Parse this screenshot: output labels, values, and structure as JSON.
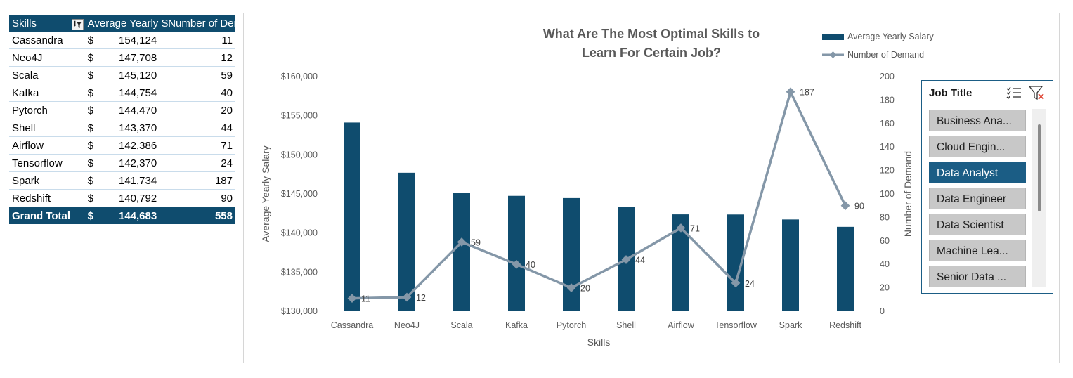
{
  "pivot": {
    "headers": {
      "skills": "Skills",
      "avg": "Average Yearly Salary",
      "demand": "Number of Demand"
    },
    "rows": [
      {
        "skill": "Cassandra",
        "currency": "$",
        "salary": "154,124",
        "demand": "11"
      },
      {
        "skill": "Neo4J",
        "currency": "$",
        "salary": "147,708",
        "demand": "12"
      },
      {
        "skill": "Scala",
        "currency": "$",
        "salary": "145,120",
        "demand": "59"
      },
      {
        "skill": "Kafka",
        "currency": "$",
        "salary": "144,754",
        "demand": "40"
      },
      {
        "skill": "Pytorch",
        "currency": "$",
        "salary": "144,470",
        "demand": "20"
      },
      {
        "skill": "Shell",
        "currency": "$",
        "salary": "143,370",
        "demand": "44"
      },
      {
        "skill": "Airflow",
        "currency": "$",
        "salary": "142,386",
        "demand": "71"
      },
      {
        "skill": "Tensorflow",
        "currency": "$",
        "salary": "142,370",
        "demand": "24"
      },
      {
        "skill": "Spark",
        "currency": "$",
        "salary": "141,734",
        "demand": "187"
      },
      {
        "skill": "Redshift",
        "currency": "$",
        "salary": "140,792",
        "demand": "90"
      }
    ],
    "total": {
      "label": "Grand Total",
      "currency": "$",
      "salary": "144,683",
      "demand": "558"
    },
    "filter_icon": "filter-sort-icon"
  },
  "chart": {
    "title_line1": "What Are The Most Optimal Skills to",
    "title_line2": "Learn For Certain Job?",
    "legend": {
      "bar": "Average Yearly Salary",
      "line": "Number of Demand"
    }
  },
  "chart_data": {
    "type": "bar",
    "title": "What Are The Most Optimal Skills to Learn For Certain Job?",
    "xlabel": "Skills",
    "ylabel": "Average Yearly Salary",
    "y2label": "Number of Demand",
    "categories": [
      "Cassandra",
      "Neo4J",
      "Scala",
      "Kafka",
      "Pytorch",
      "Shell",
      "Airflow",
      "Tensorflow",
      "Spark",
      "Redshift"
    ],
    "series": [
      {
        "name": "Average Yearly Salary",
        "type": "bar",
        "axis": "left",
        "values": [
          154124,
          147708,
          145120,
          144754,
          144470,
          143370,
          142386,
          142370,
          141734,
          140792
        ]
      },
      {
        "name": "Number of Demand",
        "type": "line",
        "axis": "right",
        "values": [
          11,
          12,
          59,
          40,
          20,
          44,
          71,
          24,
          187,
          90
        ]
      }
    ],
    "ylim": [
      130000,
      160000
    ],
    "y_ticks": [
      130000,
      135000,
      140000,
      145000,
      150000,
      155000,
      160000
    ],
    "y_tick_labels": [
      "$130,000",
      "$135,000",
      "$140,000",
      "$145,000",
      "$150,000",
      "$155,000",
      "$160,000"
    ],
    "y2lim": [
      0,
      200
    ],
    "y2_ticks": [
      0,
      20,
      40,
      60,
      80,
      100,
      120,
      140,
      160,
      180,
      200
    ],
    "y2_tick_labels": [
      "0",
      "20",
      "40",
      "60",
      "80",
      "100",
      "120",
      "140",
      "160",
      "180",
      "200"
    ],
    "grid": false,
    "legend_position": "top-right",
    "colors": {
      "bar": "#0f4c6e",
      "line": "#8497a8"
    }
  },
  "slicer": {
    "title": "Job Title",
    "multiselect_icon": "multi-select-icon",
    "clear_filter_icon": "clear-filter-icon",
    "items": [
      {
        "label": "Business Ana...",
        "selected": false
      },
      {
        "label": "Cloud Engin...",
        "selected": false
      },
      {
        "label": "Data Analyst",
        "selected": true
      },
      {
        "label": "Data Engineer",
        "selected": false
      },
      {
        "label": "Data Scientist",
        "selected": false
      },
      {
        "label": "Machine Lea...",
        "selected": false
      },
      {
        "label": "Senior Data ...",
        "selected": false
      }
    ],
    "colors": {
      "selected": "#1b5d85",
      "unselected": "#c8c8c8"
    }
  }
}
